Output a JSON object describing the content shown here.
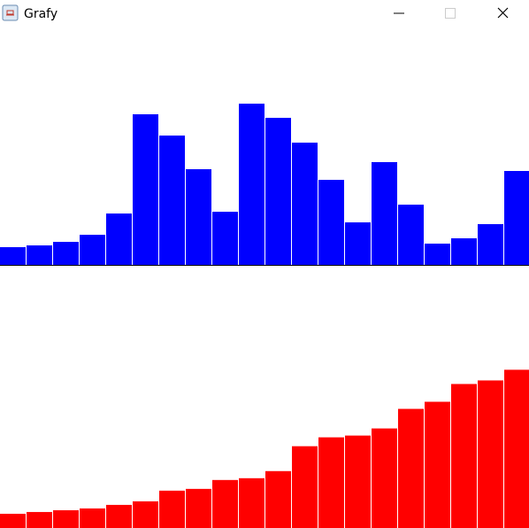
{
  "window": {
    "title": "Grafy"
  },
  "chart_data": [
    {
      "type": "bar",
      "color": "#0000ff",
      "ylim": [
        0,
        267
      ],
      "values": [
        20,
        22,
        26,
        34,
        58,
        170,
        146,
        108,
        60,
        182,
        166,
        138,
        96,
        48,
        116,
        68,
        24,
        30,
        46,
        106
      ]
    },
    {
      "type": "bar",
      "color": "#ff0000",
      "ylim": [
        0,
        295
      ],
      "values": [
        16,
        18,
        20,
        22,
        26,
        30,
        42,
        44,
        54,
        56,
        64,
        92,
        102,
        104,
        112,
        134,
        142,
        162,
        166,
        178
      ]
    }
  ]
}
